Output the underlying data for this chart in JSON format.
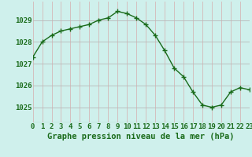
{
  "hours": [
    0,
    1,
    2,
    3,
    4,
    5,
    6,
    7,
    8,
    9,
    10,
    11,
    12,
    13,
    14,
    15,
    16,
    17,
    18,
    19,
    20,
    21,
    22,
    23
  ],
  "pressure": [
    1027.3,
    1028.0,
    1028.3,
    1028.5,
    1028.6,
    1028.7,
    1028.8,
    1029.0,
    1029.1,
    1029.4,
    1029.3,
    1029.1,
    1028.8,
    1028.3,
    1027.6,
    1026.8,
    1026.4,
    1025.7,
    1025.1,
    1025.0,
    1025.1,
    1025.7,
    1025.9,
    1025.8
  ],
  "line_color": "#1a6b1a",
  "marker": "+",
  "bg_color": "#cff0ec",
  "grid_color_v": "#d4b8b8",
  "grid_color_h": "#b8b8b8",
  "xlabel": "Graphe pression niveau de la mer (hPa)",
  "xlabel_color": "#1a6b1a",
  "ylabel_ticks": [
    1025,
    1026,
    1027,
    1028,
    1029
  ],
  "ylim": [
    1024.3,
    1029.85
  ],
  "xlim": [
    0,
    23
  ],
  "tick_label_color": "#1a6b1a",
  "xlabel_fontsize": 7.5,
  "tick_fontsize": 6.5
}
